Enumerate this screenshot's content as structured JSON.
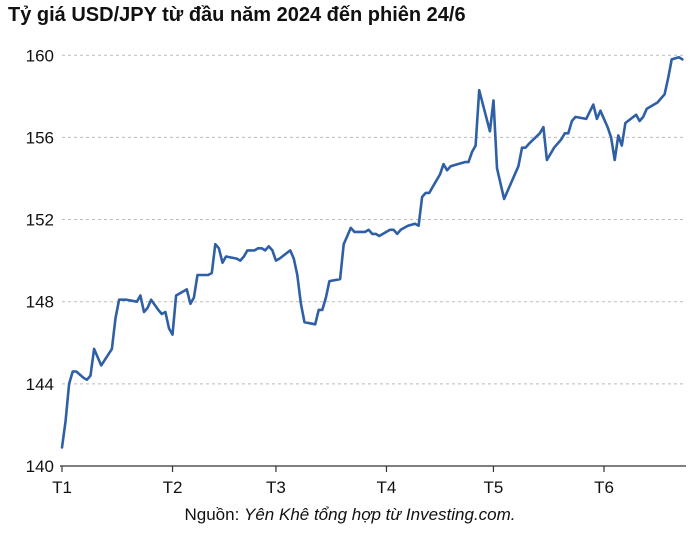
{
  "title": "Tỷ giá USD/JPY từ đầu năm 2024 đến phiên 24/6",
  "source": {
    "prefix": "Nguồn: ",
    "text": "Yên Khê tổng hợp từ Investing.com."
  },
  "colors": {
    "line": "#2f5fa5",
    "grid": "#bbbbbb",
    "axis": "#333333"
  },
  "chart_data": {
    "type": "line",
    "title": "Tỷ giá USD/JPY từ đầu năm 2024 đến phiên 24/6",
    "xlabel": "",
    "ylabel": "",
    "x_ticks": [
      {
        "label": "T1",
        "t": 0
      },
      {
        "label": "T2",
        "t": 31
      },
      {
        "label": "T3",
        "t": 60
      },
      {
        "label": "T4",
        "t": 91
      },
      {
        "label": "T5",
        "t": 121
      },
      {
        "label": "T6",
        "t": 152
      }
    ],
    "ylim": [
      140,
      160.5
    ],
    "y_ticks": [
      140,
      144,
      148,
      152,
      156,
      160
    ],
    "grid": "horizontal dashed",
    "series": [
      {
        "points": [
          [
            0,
            140.9
          ],
          [
            1,
            142.2
          ],
          [
            2,
            144.0
          ],
          [
            3,
            144.6
          ],
          [
            4,
            144.6
          ],
          [
            6,
            144.3
          ],
          [
            7,
            144.2
          ],
          [
            8,
            144.4
          ],
          [
            9,
            145.7
          ],
          [
            11,
            144.9
          ],
          [
            14,
            145.7
          ],
          [
            15,
            147.2
          ],
          [
            16,
            148.1
          ],
          [
            18,
            148.1
          ],
          [
            21,
            148.0
          ],
          [
            22,
            148.3
          ],
          [
            23,
            147.5
          ],
          [
            24,
            147.7
          ],
          [
            25,
            148.1
          ],
          [
            27,
            147.6
          ],
          [
            28,
            147.4
          ],
          [
            29,
            147.5
          ],
          [
            30,
            146.7
          ],
          [
            31,
            146.4
          ],
          [
            32,
            148.3
          ],
          [
            35,
            148.6
          ],
          [
            36,
            147.9
          ],
          [
            37,
            148.2
          ],
          [
            38,
            149.3
          ],
          [
            41,
            149.3
          ],
          [
            42,
            149.4
          ],
          [
            43,
            150.8
          ],
          [
            44,
            150.6
          ],
          [
            45,
            149.9
          ],
          [
            46,
            150.2
          ],
          [
            49,
            150.1
          ],
          [
            50,
            150.0
          ],
          [
            51,
            150.2
          ],
          [
            52,
            150.5
          ],
          [
            54,
            150.5
          ],
          [
            55,
            150.6
          ],
          [
            56,
            150.6
          ],
          [
            57,
            150.5
          ],
          [
            58,
            150.7
          ],
          [
            59,
            150.5
          ],
          [
            60,
            150.0
          ],
          [
            61,
            150.1
          ],
          [
            64,
            150.5
          ],
          [
            65,
            150.1
          ],
          [
            66,
            149.3
          ],
          [
            67,
            147.9
          ],
          [
            68,
            147.0
          ],
          [
            71,
            146.9
          ],
          [
            72,
            147.6
          ],
          [
            73,
            147.6
          ],
          [
            74,
            148.2
          ],
          [
            75,
            149.0
          ],
          [
            78,
            149.1
          ],
          [
            79,
            150.8
          ],
          [
            80,
            151.2
          ],
          [
            81,
            151.6
          ],
          [
            82,
            151.4
          ],
          [
            85,
            151.4
          ],
          [
            86,
            151.5
          ],
          [
            87,
            151.3
          ],
          [
            88,
            151.3
          ],
          [
            89,
            151.2
          ],
          [
            90,
            151.3
          ],
          [
            92,
            151.5
          ],
          [
            93,
            151.5
          ],
          [
            94,
            151.3
          ],
          [
            95,
            151.5
          ],
          [
            97,
            151.7
          ],
          [
            99,
            151.8
          ],
          [
            100,
            151.7
          ],
          [
            101,
            153.1
          ],
          [
            102,
            153.3
          ],
          [
            103,
            153.3
          ],
          [
            104,
            153.6
          ],
          [
            106,
            154.2
          ],
          [
            107,
            154.7
          ],
          [
            108,
            154.4
          ],
          [
            109,
            154.6
          ],
          [
            111,
            154.7
          ],
          [
            113,
            154.8
          ],
          [
            114,
            154.8
          ],
          [
            115,
            155.3
          ],
          [
            116,
            155.6
          ],
          [
            117,
            158.3
          ],
          [
            120,
            156.3
          ],
          [
            121,
            157.8
          ],
          [
            122,
            154.5
          ],
          [
            124,
            153.0
          ],
          [
            128,
            154.6
          ],
          [
            129,
            155.5
          ],
          [
            130,
            155.5
          ],
          [
            131,
            155.7
          ],
          [
            134,
            156.2
          ],
          [
            135,
            156.5
          ],
          [
            136,
            154.9
          ],
          [
            138,
            155.5
          ],
          [
            140,
            155.9
          ],
          [
            141,
            156.2
          ],
          [
            142,
            156.2
          ],
          [
            143,
            156.8
          ],
          [
            144,
            157.0
          ],
          [
            147,
            156.9
          ],
          [
            149,
            157.6
          ],
          [
            150,
            156.9
          ],
          [
            151,
            157.3
          ],
          [
            153,
            156.5
          ],
          [
            154,
            156.0
          ],
          [
            155,
            154.9
          ],
          [
            156,
            156.1
          ],
          [
            157,
            155.6
          ],
          [
            158,
            156.7
          ],
          [
            161,
            157.1
          ],
          [
            162,
            156.8
          ],
          [
            163,
            157.0
          ],
          [
            164,
            157.4
          ],
          [
            167,
            157.7
          ],
          [
            168,
            157.9
          ],
          [
            169,
            158.1
          ],
          [
            170,
            158.9
          ],
          [
            171,
            159.8
          ],
          [
            173,
            159.9
          ],
          [
            174,
            159.8
          ]
        ]
      }
    ]
  }
}
